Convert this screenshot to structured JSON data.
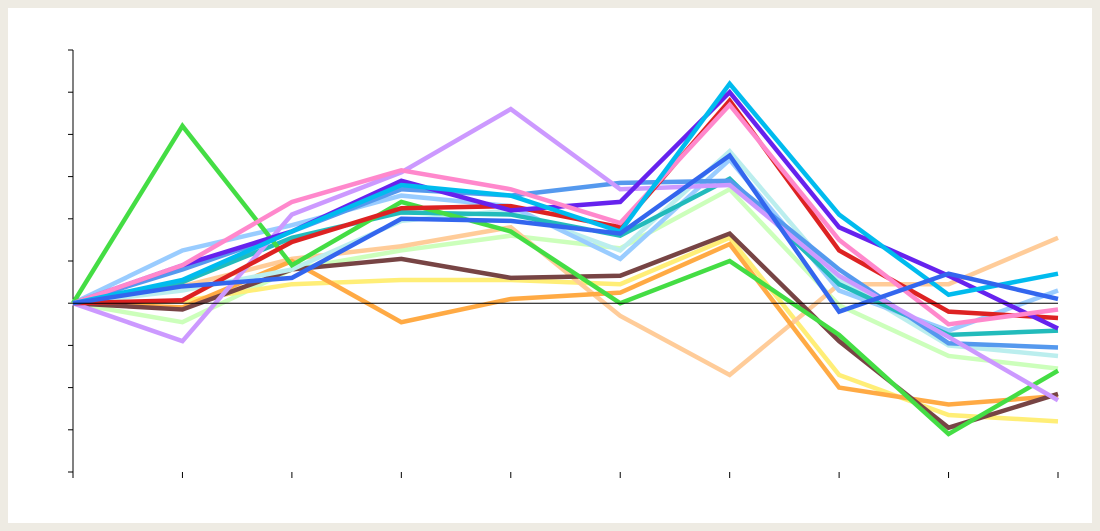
{
  "chart_data": {
    "type": "line",
    "x": [
      0,
      1,
      2,
      3,
      4,
      5,
      6,
      7,
      8,
      9
    ],
    "xlim": [
      0,
      9
    ],
    "xticks": [
      0,
      1,
      2,
      3,
      4,
      5,
      6,
      7,
      8,
      9
    ],
    "ylim": [
      -4,
      6
    ],
    "yticks": [
      -4,
      -3,
      -2,
      -1,
      0,
      1,
      2,
      3,
      4,
      5,
      6
    ],
    "series": [
      {
        "color": "#ccffbb",
        "values": [
          0,
          -0.45,
          0.8,
          1.25,
          1.6,
          1.3,
          2.7,
          -0.05,
          -1.25,
          -1.55
        ]
      },
      {
        "color": "#ffee77",
        "values": [
          0,
          0.05,
          0.45,
          0.55,
          0.55,
          0.45,
          1.55,
          -1.7,
          -2.65,
          -2.8
        ]
      },
      {
        "color": "#ffcc99",
        "values": [
          0,
          0.4,
          1.05,
          1.35,
          1.8,
          -0.3,
          -1.7,
          0.45,
          0.45,
          1.55
        ]
      },
      {
        "color": "#ffaa44",
        "values": [
          0,
          -0.1,
          1.0,
          -0.45,
          0.1,
          0.25,
          1.4,
          -2.0,
          -2.4,
          -2.2
        ]
      },
      {
        "color": "#774444",
        "values": [
          0,
          -0.15,
          0.8,
          1.05,
          0.6,
          0.65,
          1.65,
          -0.9,
          -2.95,
          -2.15
        ]
      },
      {
        "color": "#bbeeee",
        "values": [
          0,
          0.3,
          0.8,
          1.95,
          2.2,
          1.25,
          3.6,
          0.55,
          -1.0,
          -1.25
        ]
      },
      {
        "color": "#99ccff",
        "values": [
          0,
          1.25,
          1.85,
          2.55,
          2.3,
          1.05,
          3.4,
          0.3,
          -0.65,
          0.3
        ]
      },
      {
        "color": "#22bbbb",
        "values": [
          0,
          0.5,
          1.55,
          2.15,
          2.1,
          1.6,
          2.95,
          0.45,
          -0.75,
          -0.65
        ]
      },
      {
        "color": "#5599ee",
        "values": [
          0,
          0.8,
          1.7,
          2.7,
          2.55,
          2.85,
          2.9,
          0.8,
          -0.95,
          -1.05
        ]
      },
      {
        "color": "#44dd44",
        "values": [
          0,
          4.2,
          0.9,
          2.4,
          1.7,
          0,
          1.0,
          -0.75,
          -3.1,
          -1.6
        ]
      },
      {
        "color": "#cc99ff",
        "values": [
          0,
          -0.9,
          2.1,
          3.1,
          4.6,
          2.7,
          2.8,
          0.65,
          -0.8,
          -2.3
        ]
      },
      {
        "color": "#dd2222",
        "values": [
          0,
          0.07,
          1.45,
          2.25,
          2.3,
          1.8,
          4.8,
          1.25,
          -0.2,
          -0.35
        ]
      },
      {
        "color": "#6622ee",
        "values": [
          0,
          0.9,
          1.7,
          2.9,
          2.2,
          2.4,
          5.0,
          1.8,
          0.65,
          -0.6
        ]
      },
      {
        "color": "#ff88cc",
        "values": [
          0,
          0.9,
          2.4,
          3.15,
          2.7,
          1.9,
          4.7,
          1.5,
          -0.5,
          -0.15
        ]
      },
      {
        "color": "#00bbee",
        "values": [
          0,
          0.55,
          1.7,
          2.8,
          2.55,
          1.7,
          5.2,
          2.1,
          0.2,
          0.7
        ]
      },
      {
        "color": "#3366ee",
        "values": [
          0,
          0.4,
          0.6,
          2.0,
          1.95,
          1.65,
          3.5,
          -0.2,
          0.7,
          0.1
        ]
      }
    ]
  }
}
